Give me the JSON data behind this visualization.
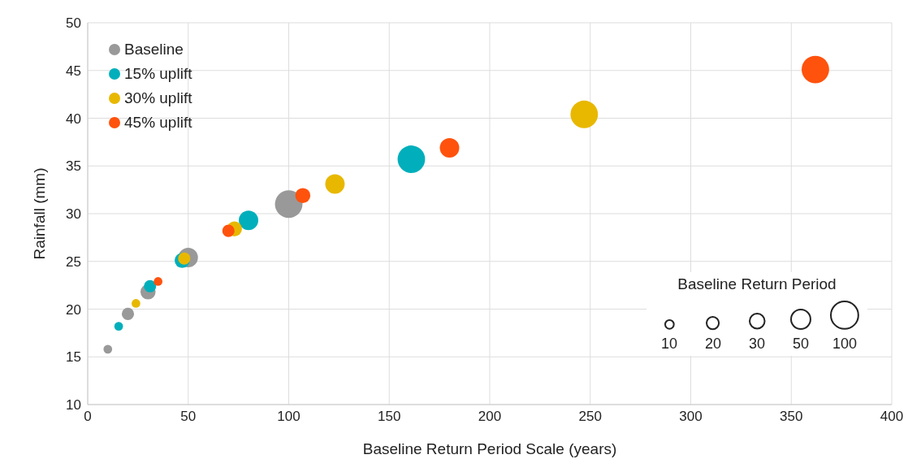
{
  "chart_data": {
    "type": "bubble",
    "xlabel": "Baseline Return Period Scale (years)",
    "ylabel": "Rainfall (mm)",
    "legend_title": "Baseline Return Period",
    "xlim": [
      0,
      400
    ],
    "xticks": [
      0,
      50,
      100,
      150,
      200,
      250,
      300,
      350,
      400
    ],
    "ylim": [
      10,
      50
    ],
    "yticks": [
      10,
      15,
      20,
      25,
      30,
      35,
      40,
      45,
      50
    ],
    "grid": true,
    "legend": "top left",
    "size_legend": [
      10,
      20,
      30,
      50,
      100
    ],
    "series": [
      {
        "name": "Baseline",
        "color": "#999999",
        "x": [
          10,
          20,
          30,
          50,
          100
        ],
        "values": [
          15.8,
          19.5,
          21.8,
          25.4,
          31.0
        ],
        "sizes": [
          10,
          20,
          30,
          50,
          100
        ]
      },
      {
        "name": "15% uplift",
        "color": "#00afbb",
        "x": [
          15.4,
          31,
          47,
          80,
          161
        ],
        "values": [
          18.2,
          22.4,
          25.1,
          29.3,
          35.7
        ],
        "sizes": [
          10,
          20,
          30,
          50,
          100
        ]
      },
      {
        "name": "30% uplift",
        "color": "#e8b800",
        "x": [
          24,
          48,
          73,
          123,
          247
        ],
        "values": [
          20.6,
          25.3,
          28.4,
          33.1,
          40.4
        ],
        "sizes": [
          10,
          20,
          30,
          50,
          100
        ]
      },
      {
        "name": "45% uplift",
        "color": "#ff520d",
        "x": [
          35,
          70,
          107,
          180,
          362
        ],
        "values": [
          22.9,
          28.2,
          31.9,
          36.9,
          45.1
        ],
        "sizes": [
          10,
          20,
          30,
          50,
          100
        ]
      }
    ]
  }
}
